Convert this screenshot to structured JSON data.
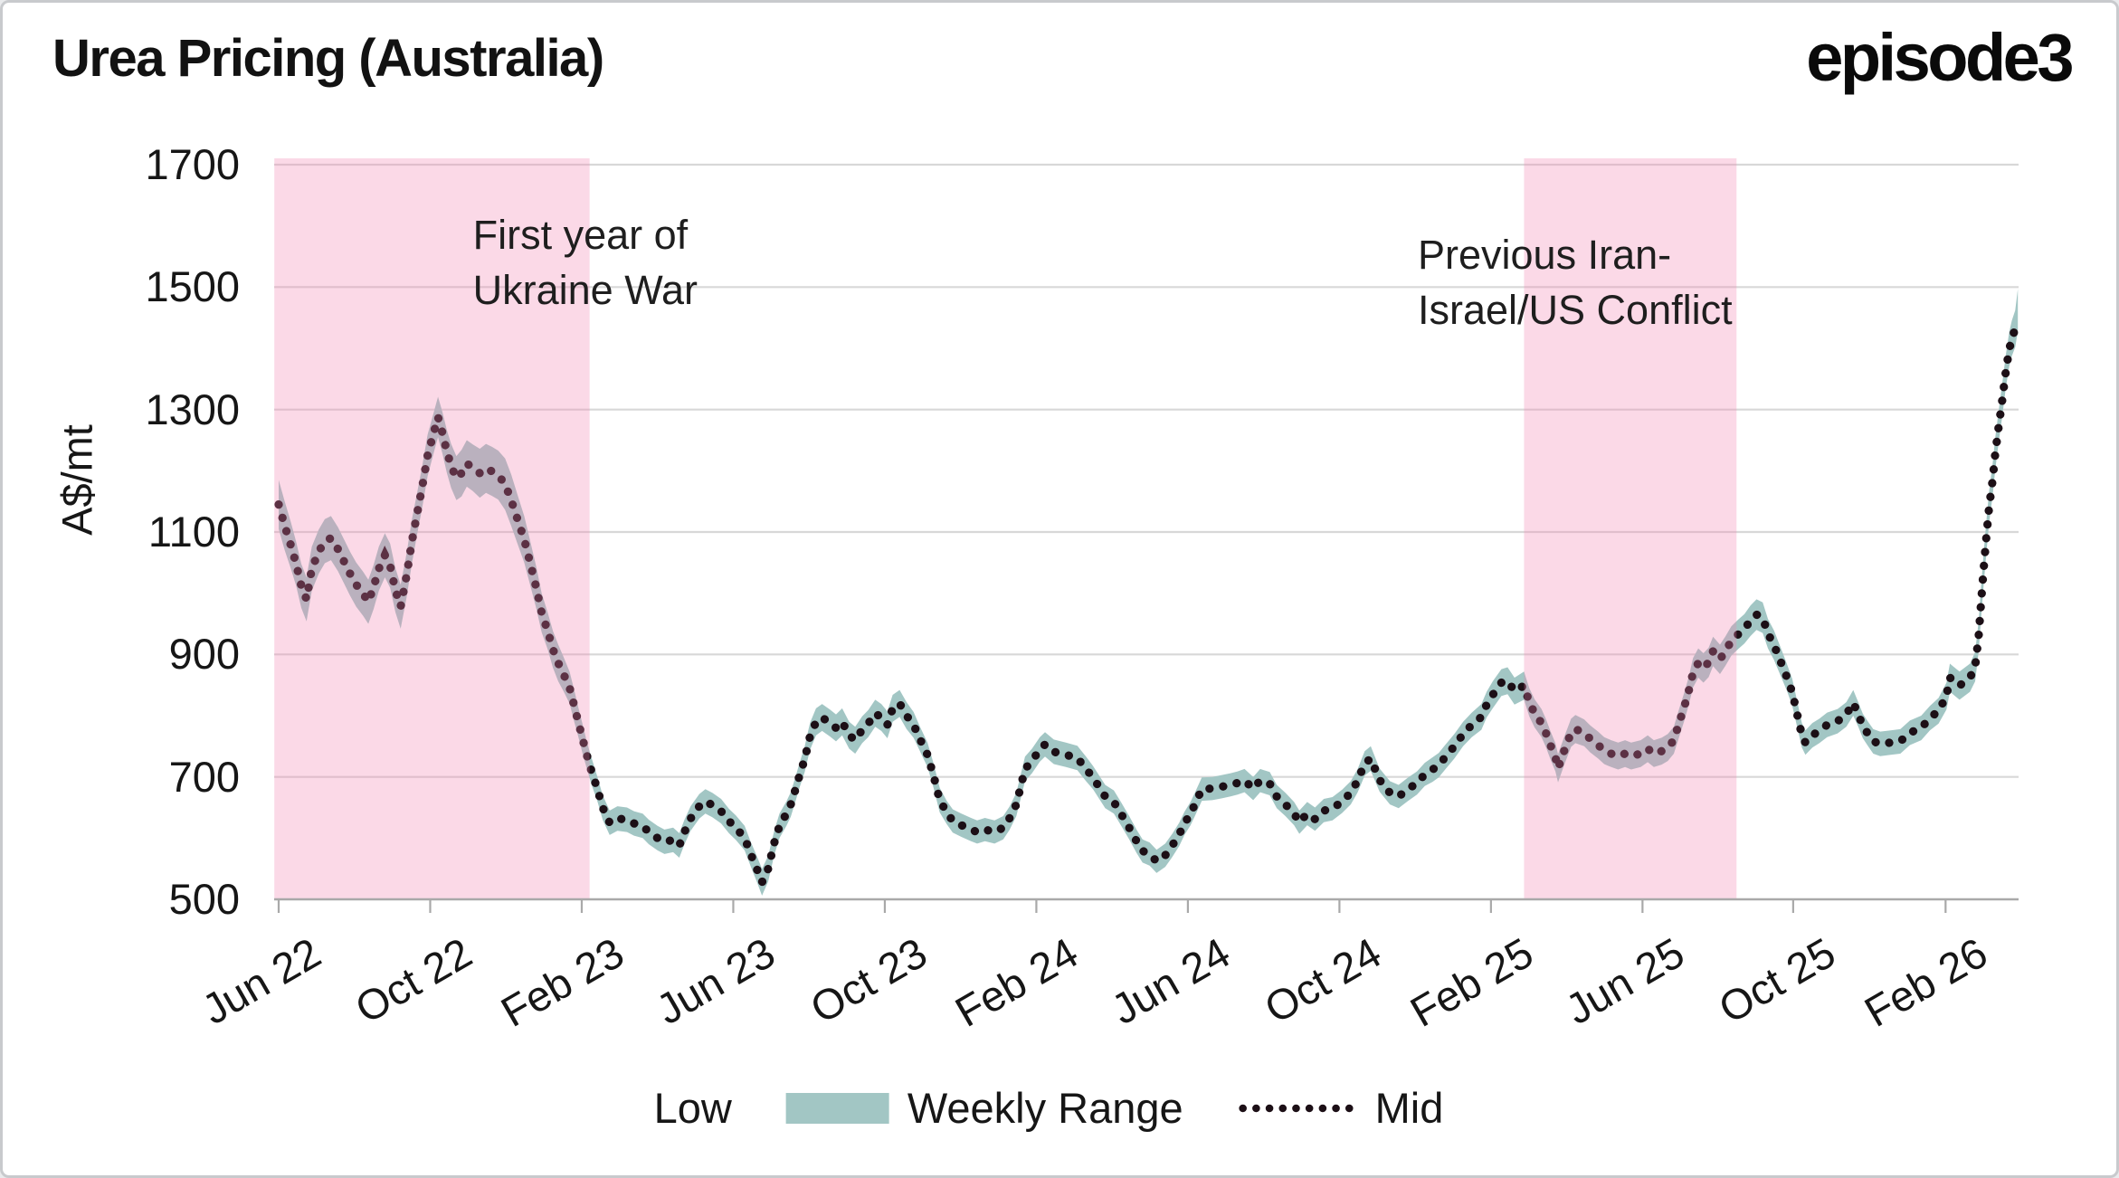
{
  "header": {
    "title": "Urea Pricing (Australia)",
    "logo": "episode3"
  },
  "colors": {
    "band": "#a2c6c4",
    "mid_dot": "#1c0f16",
    "shade_pink": "#f280af",
    "shade_pink_alpha": 0.3,
    "gridline": "#d8d8d8",
    "axis": "#a9a9a9",
    "text": "#161616",
    "background": "#ffffff",
    "frame_border": "#c8cacd"
  },
  "chart_data": {
    "type": "line",
    "title": "Urea Pricing (Australia)",
    "xlabel": "",
    "ylabel": "A$/mt",
    "ylim": [
      500,
      1712
    ],
    "grid": "horizontal",
    "legend_position": "bottom-center",
    "y_ticks": [
      500,
      700,
      900,
      1100,
      1300,
      1500,
      1700
    ],
    "x_ticks": [
      {
        "label": "Jun 22",
        "week": 0
      },
      {
        "label": "Oct 22",
        "week": 17.4
      },
      {
        "label": "Feb 23",
        "week": 34.8
      },
      {
        "label": "Jun 23",
        "week": 52.2
      },
      {
        "label": "Oct 23",
        "week": 69.6
      },
      {
        "label": "Feb 24",
        "week": 87.0
      },
      {
        "label": "Jun 24",
        "week": 104.4
      },
      {
        "label": "Oct 24",
        "week": 121.8
      },
      {
        "label": "Feb 25",
        "week": 139.2
      },
      {
        "label": "Jun 25",
        "week": 156.6
      },
      {
        "label": "Oct 25",
        "week": 173.9
      },
      {
        "label": "Feb 26",
        "week": 191.4
      }
    ],
    "legend": [
      {
        "label": "Low",
        "swatch": "none"
      },
      {
        "label": "Weekly Range",
        "swatch": "fill"
      },
      {
        "label": "Mid",
        "swatch": "dotted"
      }
    ],
    "shaded_regions": [
      {
        "label": "First year of Ukraine War",
        "week_from": -0.5,
        "week_to": 35.7
      },
      {
        "label": "Previous Iran-Israel/US Conflict",
        "week_from": 143.0,
        "week_to": 167.4
      }
    ],
    "annotations": [
      {
        "lines": [
          "First year of",
          "Ukraine War"
        ],
        "week": 22.3,
        "value": 1630
      },
      {
        "lines": [
          "Previous Iran-",
          "Israel/US Conflict"
        ],
        "week": 130.8,
        "value": 1598
      }
    ],
    "series_note": "points are [week_index_from_Jun22, mid_price, band_half_width]; low = mid - half, high = mid + half",
    "points": [
      [
        0,
        1145,
        40
      ],
      [
        0.7,
        1110,
        40
      ],
      [
        1.4,
        1078,
        38
      ],
      [
        2,
        1048,
        36
      ],
      [
        2.6,
        1012,
        36
      ],
      [
        3.2,
        990,
        36
      ],
      [
        3.8,
        1040,
        36
      ],
      [
        4.6,
        1068,
        36
      ],
      [
        5.3,
        1085,
        36
      ],
      [
        6,
        1090,
        36
      ],
      [
        6.8,
        1072,
        36
      ],
      [
        7.5,
        1052,
        36
      ],
      [
        8.2,
        1032,
        36
      ],
      [
        8.9,
        1014,
        36
      ],
      [
        9.7,
        999,
        36
      ],
      [
        10.3,
        986,
        36
      ],
      [
        10.9,
        1010,
        36
      ],
      [
        11.5,
        1040,
        36
      ],
      [
        12.2,
        1062,
        36
      ],
      [
        12.8,
        1045,
        36
      ],
      [
        13.4,
        1005,
        36
      ],
      [
        14,
        978,
        36
      ],
      [
        14.7,
        1030,
        36
      ],
      [
        15.3,
        1085,
        36
      ],
      [
        15.9,
        1130,
        34
      ],
      [
        16.5,
        1175,
        34
      ],
      [
        17.1,
        1225,
        34
      ],
      [
        17.8,
        1262,
        33
      ],
      [
        18.3,
        1288,
        33
      ],
      [
        18.8,
        1262,
        34
      ],
      [
        19.3,
        1232,
        35
      ],
      [
        19.8,
        1208,
        36
      ],
      [
        20.4,
        1188,
        36
      ],
      [
        21,
        1196,
        38
      ],
      [
        21.6,
        1212,
        38
      ],
      [
        22.3,
        1205,
        38
      ],
      [
        23.1,
        1196,
        40
      ],
      [
        23.8,
        1204,
        40
      ],
      [
        24.5,
        1199,
        40
      ],
      [
        25.2,
        1193,
        40
      ],
      [
        26,
        1178,
        42
      ],
      [
        26.7,
        1152,
        42
      ],
      [
        27.4,
        1122,
        40
      ],
      [
        28.2,
        1088,
        38
      ],
      [
        28.9,
        1048,
        36
      ],
      [
        29.6,
        1008,
        34
      ],
      [
        30.2,
        968,
        32
      ],
      [
        30.9,
        938,
        30
      ],
      [
        31.5,
        908,
        30
      ],
      [
        32.1,
        886,
        30
      ],
      [
        32.7,
        868,
        28
      ],
      [
        33.4,
        846,
        26
      ],
      [
        33.9,
        818,
        26
      ],
      [
        34.4,
        790,
        24
      ],
      [
        34.9,
        762,
        24
      ],
      [
        35.4,
        735,
        22
      ],
      [
        35.9,
        710,
        22
      ],
      [
        36.6,
        680,
        20
      ],
      [
        37.2,
        650,
        20
      ],
      [
        38,
        625,
        20
      ],
      [
        38.9,
        632,
        20
      ],
      [
        40,
        630,
        20
      ],
      [
        40.8,
        624,
        20
      ],
      [
        41.8,
        620,
        20
      ],
      [
        42.5,
        610,
        20
      ],
      [
        43.5,
        600,
        20
      ],
      [
        44.3,
        594,
        20
      ],
      [
        45.3,
        597,
        20
      ],
      [
        46,
        588,
        20
      ],
      [
        46.6,
        610,
        20
      ],
      [
        47.3,
        632,
        20
      ],
      [
        48.3,
        652,
        20
      ],
      [
        49,
        660,
        20
      ],
      [
        49.8,
        654,
        20
      ],
      [
        50.8,
        644,
        20
      ],
      [
        51.7,
        628,
        20
      ],
      [
        52.5,
        617,
        20
      ],
      [
        53.5,
        600,
        20
      ],
      [
        54.2,
        574,
        20
      ],
      [
        54.9,
        550,
        21
      ],
      [
        55.5,
        528,
        22
      ],
      [
        56.2,
        550,
        21
      ],
      [
        56.9,
        592,
        20
      ],
      [
        57.5,
        620,
        20
      ],
      [
        58.3,
        640,
        20
      ],
      [
        58.8,
        655,
        20
      ],
      [
        59.3,
        678,
        20
      ],
      [
        59.8,
        702,
        20
      ],
      [
        60.4,
        729,
        21
      ],
      [
        61,
        766,
        22
      ],
      [
        61.7,
        790,
        22
      ],
      [
        62.4,
        797,
        22
      ],
      [
        63.3,
        788,
        22
      ],
      [
        64,
        780,
        22
      ],
      [
        64.7,
        790,
        22
      ],
      [
        65.5,
        768,
        22
      ],
      [
        66.2,
        760,
        22
      ],
      [
        67,
        777,
        22
      ],
      [
        67.7,
        787,
        22
      ],
      [
        68.5,
        804,
        22
      ],
      [
        69.2,
        797,
        22
      ],
      [
        69.9,
        785,
        22
      ],
      [
        70.5,
        812,
        22
      ],
      [
        71.3,
        820,
        22
      ],
      [
        72.1,
        800,
        22
      ],
      [
        72.9,
        785,
        21
      ],
      [
        73.7,
        760,
        20
      ],
      [
        74.5,
        736,
        20
      ],
      [
        75.2,
        702,
        20
      ],
      [
        75.9,
        662,
        20
      ],
      [
        76.7,
        642,
        19
      ],
      [
        77.4,
        628,
        19
      ],
      [
        78.4,
        621,
        19
      ],
      [
        79.5,
        614,
        19
      ],
      [
        80.2,
        610,
        19
      ],
      [
        81.1,
        614,
        19
      ],
      [
        82.2,
        610,
        19
      ],
      [
        83.2,
        617,
        19
      ],
      [
        83.9,
        632,
        19
      ],
      [
        84.7,
        655,
        19
      ],
      [
        85.7,
        713,
        20
      ],
      [
        86.5,
        726,
        20
      ],
      [
        87.4,
        745,
        20
      ],
      [
        88,
        753,
        20
      ],
      [
        89,
        741,
        20
      ],
      [
        90.4,
        736,
        20
      ],
      [
        91.7,
        731,
        20
      ],
      [
        92.7,
        713,
        20
      ],
      [
        93.5,
        699,
        19
      ],
      [
        94.9,
        668,
        19
      ],
      [
        95.9,
        659,
        19
      ],
      [
        96.8,
        638,
        19
      ],
      [
        97.7,
        616,
        19
      ],
      [
        98.5,
        595,
        19
      ],
      [
        99.2,
        579,
        19
      ],
      [
        100,
        574,
        19
      ],
      [
        100.8,
        562,
        19
      ],
      [
        101.8,
        572,
        19
      ],
      [
        102.6,
        588,
        19
      ],
      [
        103.4,
        606,
        19
      ],
      [
        104,
        624,
        19
      ],
      [
        104.7,
        640,
        19
      ],
      [
        105.2,
        655,
        19
      ],
      [
        106,
        680,
        19
      ],
      [
        107.2,
        681,
        19
      ],
      [
        108.3,
        684,
        19
      ],
      [
        109.3,
        687,
        19
      ],
      [
        110.1,
        690,
        19
      ],
      [
        110.9,
        694,
        19
      ],
      [
        111.9,
        681,
        19
      ],
      [
        112.7,
        694,
        19
      ],
      [
        113.8,
        689,
        19
      ],
      [
        114.6,
        668,
        19
      ],
      [
        115.6,
        655,
        19
      ],
      [
        116.6,
        640,
        19
      ],
      [
        117.2,
        626,
        19
      ],
      [
        118.1,
        640,
        19
      ],
      [
        119,
        631,
        19
      ],
      [
        120,
        645,
        19
      ],
      [
        121,
        648,
        19
      ],
      [
        122.1,
        660,
        19
      ],
      [
        123.1,
        674,
        19
      ],
      [
        123.9,
        694,
        19
      ],
      [
        124.7,
        722,
        20
      ],
      [
        125.4,
        730,
        20
      ],
      [
        126.4,
        695,
        19
      ],
      [
        127.6,
        674,
        19
      ],
      [
        128.6,
        668,
        19
      ],
      [
        129.7,
        680,
        19
      ],
      [
        130.7,
        690,
        19
      ],
      [
        131.6,
        704,
        19
      ],
      [
        132.5,
        712,
        20
      ],
      [
        133.2,
        719,
        20
      ],
      [
        134,
        733,
        20
      ],
      [
        135,
        750,
        20
      ],
      [
        136,
        770,
        20
      ],
      [
        137,
        785,
        20
      ],
      [
        138.1,
        798,
        21
      ],
      [
        138.7,
        818,
        21
      ],
      [
        139.4,
        834,
        22
      ],
      [
        140.4,
        854,
        22
      ],
      [
        141.1,
        857,
        22
      ],
      [
        141.9,
        840,
        22
      ],
      [
        143,
        849,
        23
      ],
      [
        143.6,
        822,
        23
      ],
      [
        144.2,
        804,
        23
      ],
      [
        145,
        788,
        23
      ],
      [
        145.5,
        772,
        23
      ],
      [
        146,
        753,
        23
      ],
      [
        146.6,
        732,
        23
      ],
      [
        146.9,
        714,
        23
      ],
      [
        147.6,
        742,
        23
      ],
      [
        148.4,
        772,
        23
      ],
      [
        148.9,
        778,
        23
      ],
      [
        149.9,
        772,
        22
      ],
      [
        150.6,
        762,
        22
      ],
      [
        151.5,
        752,
        22
      ],
      [
        152.2,
        743,
        22
      ],
      [
        153,
        738,
        22
      ],
      [
        153.8,
        734,
        22
      ],
      [
        154.6,
        738,
        22
      ],
      [
        155.3,
        734,
        22
      ],
      [
        156.4,
        738,
        22
      ],
      [
        157.2,
        746,
        22
      ],
      [
        157.9,
        738,
        22
      ],
      [
        158.8,
        742,
        22
      ],
      [
        159.5,
        748,
        22
      ],
      [
        160.2,
        760,
        22
      ],
      [
        160.8,
        788,
        23
      ],
      [
        161.4,
        815,
        23
      ],
      [
        161.9,
        840,
        23
      ],
      [
        162.4,
        870,
        24
      ],
      [
        163,
        886,
        24
      ],
      [
        163.6,
        878,
        24
      ],
      [
        164.2,
        887,
        24
      ],
      [
        164.7,
        905,
        24
      ],
      [
        165.5,
        892,
        24
      ],
      [
        166.1,
        905,
        24
      ],
      [
        166.8,
        922,
        24
      ],
      [
        167.6,
        933,
        24
      ],
      [
        168.3,
        942,
        24
      ],
      [
        169,
        955,
        25
      ],
      [
        169.7,
        965,
        25
      ],
      [
        170.4,
        960,
        25
      ],
      [
        171,
        934,
        24
      ],
      [
        171.7,
        915,
        24
      ],
      [
        172.5,
        887,
        23
      ],
      [
        173.2,
        862,
        22
      ],
      [
        173.8,
        838,
        22
      ],
      [
        174.4,
        800,
        21
      ],
      [
        174.9,
        768,
        20
      ],
      [
        175.3,
        756,
        20
      ],
      [
        176.1,
        768,
        20
      ],
      [
        176.9,
        775,
        20
      ],
      [
        177.8,
        785,
        20
      ],
      [
        179,
        791,
        20
      ],
      [
        180,
        802,
        20
      ],
      [
        180.8,
        821,
        21
      ],
      [
        181.4,
        801,
        20
      ],
      [
        181.9,
        783,
        20
      ],
      [
        182.5,
        770,
        20
      ],
      [
        183.1,
        758,
        20
      ],
      [
        183.9,
        754,
        20
      ],
      [
        185.1,
        756,
        20
      ],
      [
        186.2,
        758,
        20
      ],
      [
        187.3,
        772,
        20
      ],
      [
        188.6,
        780,
        20
      ],
      [
        189.6,
        796,
        20
      ],
      [
        190.6,
        808,
        21
      ],
      [
        191.5,
        832,
        22
      ],
      [
        191.9,
        862,
        23
      ],
      [
        193,
        849,
        23
      ],
      [
        194.2,
        862,
        23
      ],
      [
        194.8,
        880,
        24
      ],
      [
        195.2,
        930,
        25
      ],
      [
        195.5,
        990,
        26
      ],
      [
        195.8,
        1045,
        26
      ],
      [
        196.1,
        1095,
        26
      ],
      [
        196.4,
        1140,
        26
      ],
      [
        196.8,
        1185,
        26
      ],
      [
        197.1,
        1228,
        26
      ],
      [
        197.5,
        1272,
        26
      ],
      [
        197.9,
        1315,
        27
      ],
      [
        198.3,
        1360,
        27
      ],
      [
        198.7,
        1398,
        28
      ],
      [
        199,
        1416,
        29
      ],
      [
        199.4,
        1432,
        30
      ]
    ],
    "band_tip": {
      "week": 199.7,
      "low": 1428,
      "high": 1497
    }
  }
}
